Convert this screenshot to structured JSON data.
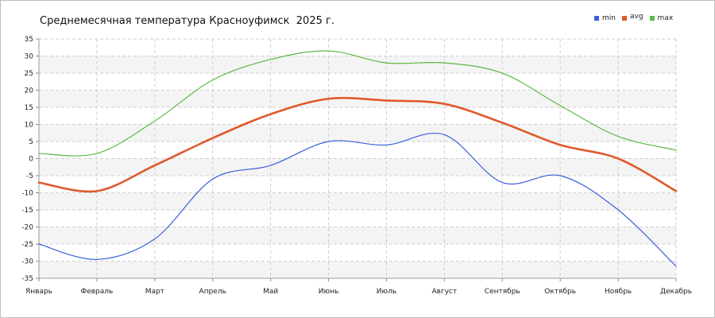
{
  "chart_data": {
    "type": "line",
    "title": "Среднемесячная температура Красноуфимск  2025 г.",
    "xlabel": "",
    "ylabel": "",
    "categories": [
      "Январь",
      "Февраль",
      "Март",
      "Апрель",
      "Май",
      "Июнь",
      "Июль",
      "Август",
      "Сентябрь",
      "Октябрь",
      "Ноябрь",
      "Декабрь"
    ],
    "ylim": [
      -35,
      35
    ],
    "yticks": [
      35,
      30,
      25,
      20,
      15,
      10,
      5,
      0,
      -5,
      -10,
      -15,
      -20,
      -25,
      -30,
      -35
    ],
    "grid": true,
    "legend_position": "top-right",
    "series": [
      {
        "name": "min",
        "color": "#3a5fd8",
        "values": [
          -25,
          -29.5,
          -23.5,
          -6,
          -2,
          5,
          4,
          7,
          -7,
          -5,
          -15,
          -31.5
        ]
      },
      {
        "name": "avg",
        "color": "#e0592a",
        "values": [
          -7,
          -9.5,
          -2,
          6,
          13,
          17.5,
          17,
          16,
          10.5,
          4,
          0,
          -9.5
        ]
      },
      {
        "name": "max",
        "color": "#5cb843",
        "values": [
          1.5,
          1.5,
          11,
          23,
          29,
          31.5,
          28,
          28,
          25,
          15.5,
          6.5,
          2.5
        ]
      }
    ]
  }
}
